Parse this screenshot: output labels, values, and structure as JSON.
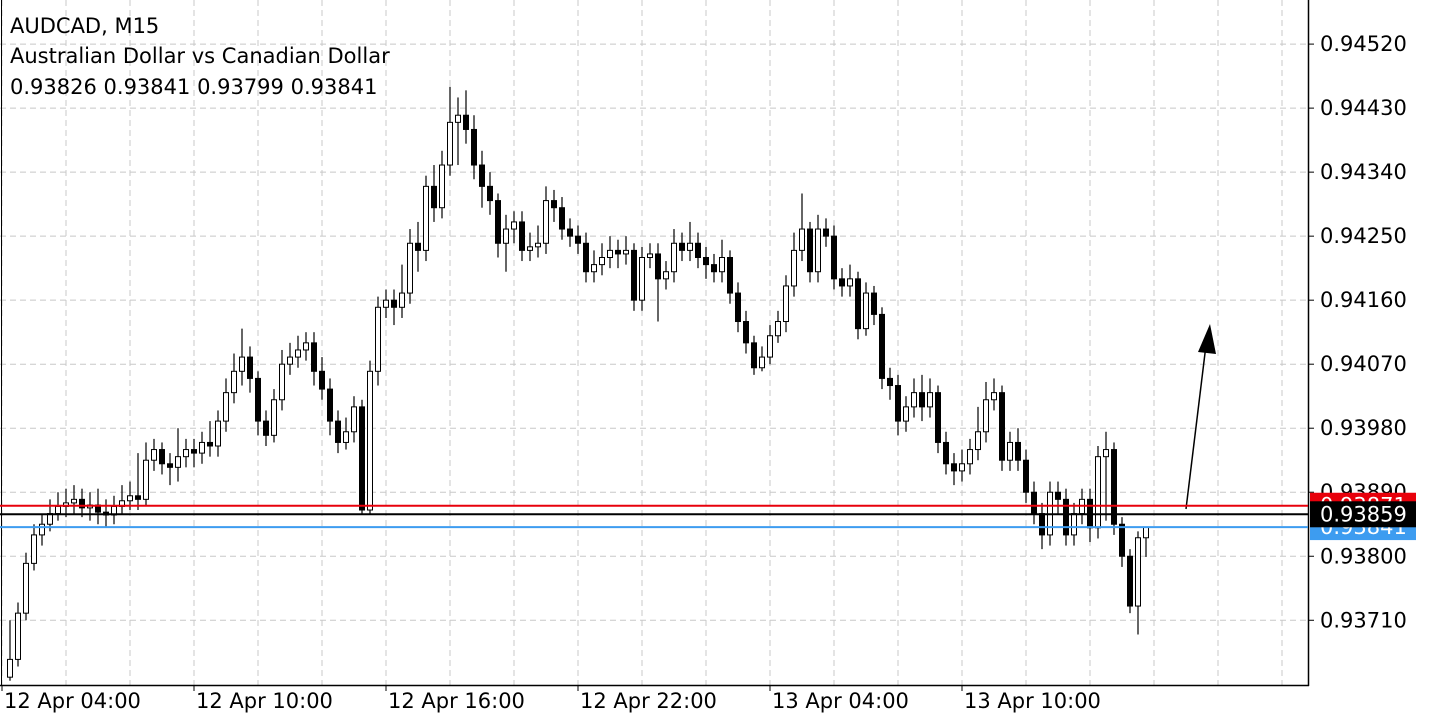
{
  "chart_data": {
    "type": "candlestick",
    "title": "AUDCAD, M15",
    "subtitle": "Australian Dollar vs Canadian Dollar",
    "x": [
      1,
      2,
      3,
      4,
      5,
      6,
      7,
      8,
      9,
      10,
      11,
      12,
      13,
      14,
      15,
      16,
      17,
      18,
      19,
      20,
      21,
      22,
      23,
      24,
      25,
      26,
      27,
      28,
      29,
      30,
      31,
      32,
      33,
      34,
      35,
      36,
      37,
      38,
      39,
      40,
      41,
      42,
      43,
      44,
      45,
      46,
      47,
      48,
      49,
      50,
      51,
      52,
      53,
      54,
      55,
      56,
      57,
      58,
      59,
      60,
      61,
      62,
      63,
      64,
      65,
      66,
      67,
      68,
      69,
      70,
      71,
      72,
      73,
      74,
      75,
      76,
      77,
      78,
      79,
      80,
      81,
      82,
      83,
      84,
      85,
      86,
      87,
      88,
      89,
      90,
      91,
      92,
      93,
      94,
      95,
      96,
      97,
      98,
      99,
      100,
      101,
      102,
      103,
      104,
      105,
      106,
      107,
      108,
      109,
      110,
      111,
      112,
      113,
      114,
      115,
      116,
      117,
      118,
      119,
      120,
      121,
      122,
      123,
      124,
      125,
      126,
      127,
      128,
      129,
      130,
      131,
      132,
      133,
      134,
      135,
      136,
      137,
      138,
      139,
      140,
      141,
      142,
      143
    ],
    "open": [
      0.9363,
      0.93655,
      0.9372,
      0.9379,
      0.9383,
      0.93845,
      0.9386,
      0.9387,
      0.93875,
      0.9388,
      0.93868,
      0.93872,
      0.93862,
      0.93858,
      0.9387,
      0.93878,
      0.93885,
      0.9388,
      0.93935,
      0.9395,
      0.9393,
      0.93925,
      0.9394,
      0.9395,
      0.93945,
      0.9396,
      0.93955,
      0.9399,
      0.9403,
      0.9406,
      0.9408,
      0.9405,
      0.9399,
      0.9397,
      0.9402,
      0.9407,
      0.9408,
      0.9409,
      0.941,
      0.9406,
      0.94035,
      0.9399,
      0.9396,
      0.93975,
      0.9401,
      0.93865,
      0.9406,
      0.9415,
      0.9416,
      0.9415,
      0.9417,
      0.9424,
      0.9423,
      0.9432,
      0.9429,
      0.9435,
      0.9441,
      0.9442,
      0.944,
      0.9435,
      0.9432,
      0.943,
      0.9424,
      0.9426,
      0.9427,
      0.9423,
      0.94235,
      0.9424,
      0.943,
      0.9429,
      0.9426,
      0.9425,
      0.9424,
      0.942,
      0.9421,
      0.9422,
      0.9423,
      0.94225,
      0.9423,
      0.9416,
      0.9422,
      0.94225,
      0.9419,
      0.942,
      0.9424,
      0.9423,
      0.9424,
      0.9422,
      0.9421,
      0.942,
      0.9422,
      0.9417,
      0.9413,
      0.941,
      0.94065,
      0.9408,
      0.9411,
      0.9413,
      0.9418,
      0.9423,
      0.9426,
      0.942,
      0.9426,
      0.9425,
      0.9419,
      0.9418,
      0.9419,
      0.9412,
      0.9417,
      0.9414,
      0.9405,
      0.9404,
      0.9399,
      0.9401,
      0.9403,
      0.9401,
      0.9403,
      0.9396,
      0.9393,
      0.9392,
      0.9393,
      0.9395,
      0.93975,
      0.9402,
      0.9403,
      0.93935,
      0.9396,
      0.93935,
      0.9389,
      0.9386,
      0.9383,
      0.9389,
      0.9388,
      0.9383,
      0.9386,
      0.9388,
      0.9384,
      0.9394,
      0.9395,
      0.93845,
      0.938,
      0.9373,
      0.93826
    ],
    "high": [
      0.9371,
      0.93735,
      0.93805,
      0.93845,
      0.9386,
      0.9388,
      0.9389,
      0.93895,
      0.939,
      0.93895,
      0.9389,
      0.93895,
      0.9388,
      0.93885,
      0.939,
      0.93905,
      0.93945,
      0.9396,
      0.93965,
      0.9396,
      0.93945,
      0.9398,
      0.93965,
      0.93965,
      0.93975,
      0.9399,
      0.94005,
      0.9405,
      0.94085,
      0.9412,
      0.94095,
      0.9406,
      0.94005,
      0.94035,
      0.9409,
      0.941,
      0.9411,
      0.94115,
      0.94115,
      0.9408,
      0.9405,
      0.94005,
      0.93995,
      0.94025,
      0.9402,
      0.94075,
      0.94165,
      0.94175,
      0.94175,
      0.9421,
      0.9426,
      0.9427,
      0.94335,
      0.9435,
      0.9437,
      0.9446,
      0.94445,
      0.94455,
      0.9442,
      0.9437,
      0.9434,
      0.9431,
      0.9428,
      0.94285,
      0.94285,
      0.94255,
      0.94265,
      0.9432,
      0.94315,
      0.94305,
      0.94275,
      0.94265,
      0.94255,
      0.9423,
      0.9424,
      0.9425,
      0.94245,
      0.9425,
      0.9424,
      0.94235,
      0.9424,
      0.9424,
      0.94215,
      0.9426,
      0.94255,
      0.9427,
      0.94255,
      0.94235,
      0.94225,
      0.94245,
      0.9423,
      0.94185,
      0.94145,
      0.9411,
      0.94095,
      0.94125,
      0.94145,
      0.94195,
      0.94255,
      0.9431,
      0.9427,
      0.9428,
      0.94275,
      0.94265,
      0.94205,
      0.9421,
      0.942,
      0.94185,
      0.9418,
      0.9415,
      0.94065,
      0.94055,
      0.94025,
      0.9405,
      0.94055,
      0.9405,
      0.9404,
      0.93975,
      0.93945,
      0.9395,
      0.93965,
      0.9401,
      0.94045,
      0.9405,
      0.9404,
      0.93975,
      0.9398,
      0.9395,
      0.93905,
      0.93875,
      0.93905,
      0.93905,
      0.93895,
      0.93875,
      0.93895,
      0.93895,
      0.93955,
      0.93975,
      0.9396,
      0.93855,
      0.9381,
      0.93835,
      0.93841
    ],
    "low": [
      0.93625,
      0.93645,
      0.9371,
      0.9378,
      0.93815,
      0.93835,
      0.9385,
      0.93855,
      0.9386,
      0.93855,
      0.9385,
      0.93845,
      0.9384,
      0.93845,
      0.9386,
      0.93865,
      0.93865,
      0.9387,
      0.9392,
      0.93915,
      0.939,
      0.93905,
      0.93925,
      0.93925,
      0.9393,
      0.9394,
      0.9394,
      0.93975,
      0.94015,
      0.9404,
      0.9403,
      0.9397,
      0.93955,
      0.9396,
      0.94005,
      0.94055,
      0.94065,
      0.94075,
      0.9404,
      0.9402,
      0.9397,
      0.93945,
      0.9395,
      0.9396,
      0.9386,
      0.9386,
      0.9404,
      0.94135,
      0.94125,
      0.94135,
      0.94155,
      0.942,
      0.94215,
      0.9427,
      0.94275,
      0.94335,
      0.9435,
      0.9438,
      0.9433,
      0.9429,
      0.9428,
      0.9422,
      0.942,
      0.9424,
      0.94215,
      0.94215,
      0.9422,
      0.94225,
      0.9427,
      0.94245,
      0.94235,
      0.94225,
      0.94185,
      0.94185,
      0.94195,
      0.94205,
      0.94205,
      0.9421,
      0.94145,
      0.94145,
      0.94205,
      0.9413,
      0.94175,
      0.94185,
      0.94215,
      0.94215,
      0.94205,
      0.9419,
      0.94185,
      0.94185,
      0.94155,
      0.94115,
      0.94085,
      0.94055,
      0.9406,
      0.9407,
      0.941,
      0.94115,
      0.94165,
      0.94215,
      0.94185,
      0.94185,
      0.94235,
      0.94175,
      0.94165,
      0.94165,
      0.94105,
      0.9411,
      0.94125,
      0.94035,
      0.9402,
      0.9397,
      0.93975,
      0.93995,
      0.9399,
      0.93995,
      0.93945,
      0.93915,
      0.939,
      0.93905,
      0.93915,
      0.93935,
      0.9396,
      0.94005,
      0.9392,
      0.9392,
      0.9392,
      0.93875,
      0.93845,
      0.9381,
      0.93815,
      0.9386,
      0.93815,
      0.93815,
      0.93845,
      0.9382,
      0.93825,
      0.9385,
      0.9383,
      0.93785,
      0.9372,
      0.9369,
      0.93799
    ],
    "close": [
      0.93655,
      0.9372,
      0.9379,
      0.9383,
      0.93845,
      0.9386,
      0.9387,
      0.93875,
      0.9388,
      0.93868,
      0.93872,
      0.93862,
      0.93858,
      0.9387,
      0.93878,
      0.93885,
      0.9388,
      0.93935,
      0.9395,
      0.9393,
      0.93925,
      0.9394,
      0.9395,
      0.93945,
      0.9396,
      0.93955,
      0.9399,
      0.9403,
      0.9406,
      0.9408,
      0.9405,
      0.9399,
      0.9397,
      0.9402,
      0.9407,
      0.9408,
      0.9409,
      0.941,
      0.9406,
      0.94035,
      0.9399,
      0.9396,
      0.93975,
      0.9401,
      0.93865,
      0.9406,
      0.9415,
      0.9416,
      0.9415,
      0.9417,
      0.9424,
      0.9423,
      0.9432,
      0.9429,
      0.9435,
      0.9441,
      0.9442,
      0.944,
      0.9435,
      0.9432,
      0.943,
      0.9424,
      0.9426,
      0.9427,
      0.9423,
      0.94235,
      0.9424,
      0.943,
      0.9429,
      0.9426,
      0.9425,
      0.9424,
      0.942,
      0.9421,
      0.9422,
      0.9423,
      0.94225,
      0.9423,
      0.9416,
      0.9422,
      0.94225,
      0.9419,
      0.942,
      0.9424,
      0.9423,
      0.9424,
      0.9422,
      0.9421,
      0.942,
      0.9422,
      0.9417,
      0.9413,
      0.941,
      0.94065,
      0.9408,
      0.9411,
      0.9413,
      0.9418,
      0.9423,
      0.9426,
      0.942,
      0.9426,
      0.9425,
      0.9419,
      0.9418,
      0.9419,
      0.9412,
      0.9417,
      0.9414,
      0.9405,
      0.9404,
      0.9399,
      0.9401,
      0.9403,
      0.9401,
      0.9403,
      0.9396,
      0.9393,
      0.9392,
      0.9393,
      0.9395,
      0.93975,
      0.9402,
      0.9403,
      0.93935,
      0.9396,
      0.93935,
      0.9389,
      0.9386,
      0.9383,
      0.9389,
      0.9388,
      0.9383,
      0.9386,
      0.9388,
      0.9384,
      0.9394,
      0.9395,
      0.93845,
      0.938,
      0.9373,
      0.93826,
      0.93841
    ],
    "up_color": "#ffffff",
    "down_color": "#000000",
    "outline_color": "#000000",
    "xlim": [
      -0.25,
      163.25
    ],
    "xticks": [
      {
        "value": 0,
        "label": "12 Apr 04:00"
      },
      {
        "value": 24,
        "label": "12 Apr 10:00"
      },
      {
        "value": 48,
        "label": "12 Apr 16:00"
      },
      {
        "value": 72,
        "label": "12 Apr 22:00"
      },
      {
        "value": 96,
        "label": "13 Apr 04:00"
      },
      {
        "value": 120,
        "label": "13 Apr 10:00"
      }
    ],
    "xgrid": [
      0,
      8,
      16,
      24,
      32,
      40,
      48,
      56,
      64,
      72,
      80,
      88,
      96,
      104,
      112,
      120,
      128,
      136,
      144,
      152,
      160
    ],
    "ylim": [
      0.93619,
      0.94582
    ],
    "yticks": [
      {
        "value": 0.9371,
        "label": "0.93710"
      },
      {
        "value": 0.938,
        "label": "0.93800"
      },
      {
        "value": 0.9389,
        "label": "0.93890"
      },
      {
        "value": 0.9398,
        "label": "0.93980"
      },
      {
        "value": 0.9407,
        "label": "0.94070"
      },
      {
        "value": 0.9416,
        "label": "0.94160"
      },
      {
        "value": 0.9425,
        "label": "0.94250"
      },
      {
        "value": 0.9434,
        "label": "0.94340"
      },
      {
        "value": 0.9443,
        "label": "0.94430"
      },
      {
        "value": 0.9452,
        "label": "0.94520"
      }
    ],
    "grid": true,
    "price_lines": [
      {
        "value": 0.93871,
        "color": "#e8000b"
      },
      {
        "value": 0.93841,
        "color": "#3d9cf0"
      },
      {
        "value": 0.93859,
        "color": "#000000"
      }
    ]
  }
}
